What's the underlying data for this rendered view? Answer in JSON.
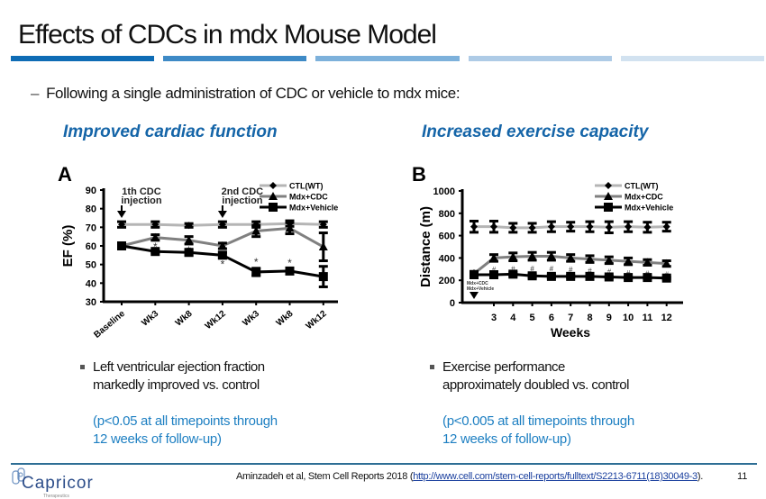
{
  "slide": {
    "title": "Effects of CDCs in mdx Mouse Model",
    "title_bar_colors": [
      "#0e6cb5",
      "#3e8ac6",
      "#7db1db",
      "#aecbe6",
      "#d2e2f0"
    ],
    "subtitle_dash": "–",
    "subtitle": "Following a single administration of CDC or vehicle to mdx mice:",
    "left": {
      "heading": "Improved cardiac function",
      "bullet_line1": "Left ventricular ejection fraction",
      "bullet_line2": "markedly improved vs. control",
      "pnote_line1": "(p<0.05 at all timepoints through",
      "pnote_line2": "12 weeks of follow-up)"
    },
    "right": {
      "heading": "Increased exercise capacity",
      "bullet_line1": "Exercise performance",
      "bullet_line2": "approximately doubled vs. control",
      "pnote_line1": "(p<0.005 at all timepoints through",
      "pnote_line2": "12 weeks of follow-up)"
    },
    "footer": {
      "logo_name": "Capricor",
      "logo_sub": "Therapeutics",
      "citation_prefix": "Aminzadeh et al, Stem Cell Reports 2018 (",
      "citation_link": "http://www.cell.com/stem-cell-reports/fulltext/S2213-6711(18)30049-3",
      "citation_suffix": ").",
      "page_number": "11"
    },
    "colors": {
      "heading_blue": "#1565a8",
      "pnote_blue": "#1d7fc2",
      "footer_line": "#2e6e95"
    }
  },
  "chart_data": [
    {
      "type": "line",
      "panel_label": "A",
      "title": "",
      "xlabel": "",
      "ylabel": "EF (%)",
      "ylim": [
        30,
        90
      ],
      "yticks": [
        30,
        40,
        50,
        60,
        70,
        80,
        90
      ],
      "categories": [
        "Baseline",
        "Wk3",
        "Wk8",
        "Wk12",
        "Wk3",
        "Wk8",
        "Wk12"
      ],
      "legend_position": "top-right",
      "annotations": [
        {
          "category_index": 0,
          "line1": "1th CDC",
          "line2": "injection"
        },
        {
          "category_index": 3,
          "line1": "2nd CDC",
          "line2": "injection"
        }
      ],
      "significance_marker": "*",
      "series": [
        {
          "name": "CTL(WT)",
          "color": "#b5b5b5",
          "marker": "diamond",
          "values": [
            71.5,
            71.5,
            71,
            71.5,
            71.5,
            72,
            71.5
          ],
          "errors": [
            1.5,
            1.5,
            1,
            1.5,
            1.5,
            1.5,
            1.5
          ]
        },
        {
          "name": "Mdx+CDC",
          "color": "#808080",
          "marker": "triangle",
          "values": [
            60,
            64.5,
            63,
            60,
            68,
            69.5,
            59.5
          ],
          "errors": [
            1,
            1.5,
            2,
            1.5,
            3,
            3,
            7.5
          ],
          "significant": [
            false,
            true,
            true,
            false,
            false,
            false,
            false
          ]
        },
        {
          "name": "Mdx+Vehicle",
          "color": "#000000",
          "marker": "square",
          "values": [
            60,
            57,
            56.5,
            55,
            46,
            46.5,
            43.5
          ],
          "errors": [
            0.5,
            0.5,
            1.5,
            1.5,
            2,
            1,
            5.5
          ],
          "significant": [
            false,
            false,
            false,
            true,
            true,
            true,
            false
          ]
        }
      ]
    },
    {
      "type": "line",
      "panel_label": "B",
      "title": "",
      "xlabel": "Weeks",
      "ylabel": "Distance (m)",
      "ylim": [
        0,
        1000
      ],
      "yticks": [
        0,
        200,
        400,
        600,
        800,
        1000
      ],
      "x": [
        0,
        3,
        4,
        5,
        6,
        7,
        8,
        9,
        10,
        11,
        12
      ],
      "xtick_labels": [
        "",
        "3",
        "4",
        "5",
        "6",
        "7",
        "8",
        "9",
        "10",
        "11",
        "12"
      ],
      "legend_position": "top-right",
      "annotations": [
        {
          "x": 0,
          "line1": "Mdx+CDC",
          "line2": "Mdx+Vehicle"
        }
      ],
      "significance_marker": "#",
      "series": [
        {
          "name": "CTL(WT)",
          "color": "#b5b5b5",
          "marker": "diamond",
          "values": [
            680,
            680,
            670,
            670,
            680,
            680,
            680,
            675,
            680,
            675,
            680
          ],
          "errors": [
            50,
            50,
            40,
            40,
            45,
            40,
            45,
            50,
            45,
            45,
            40
          ]
        },
        {
          "name": "Mdx+CDC",
          "color": "#808080",
          "marker": "triangle",
          "values": [
            260,
            400,
            410,
            415,
            415,
            400,
            390,
            380,
            370,
            360,
            350
          ],
          "errors": [
            20,
            30,
            35,
            35,
            35,
            30,
            30,
            30,
            30,
            25,
            25
          ],
          "significant": [
            false,
            true,
            true,
            true,
            true,
            true,
            true,
            true,
            true,
            true,
            true
          ]
        },
        {
          "name": "Mdx+Vehicle",
          "color": "#000000",
          "marker": "square",
          "values": [
            250,
            250,
            255,
            240,
            235,
            235,
            235,
            230,
            225,
            225,
            220
          ],
          "errors": [
            10,
            15,
            15,
            15,
            15,
            10,
            10,
            10,
            10,
            10,
            10
          ]
        }
      ]
    }
  ]
}
